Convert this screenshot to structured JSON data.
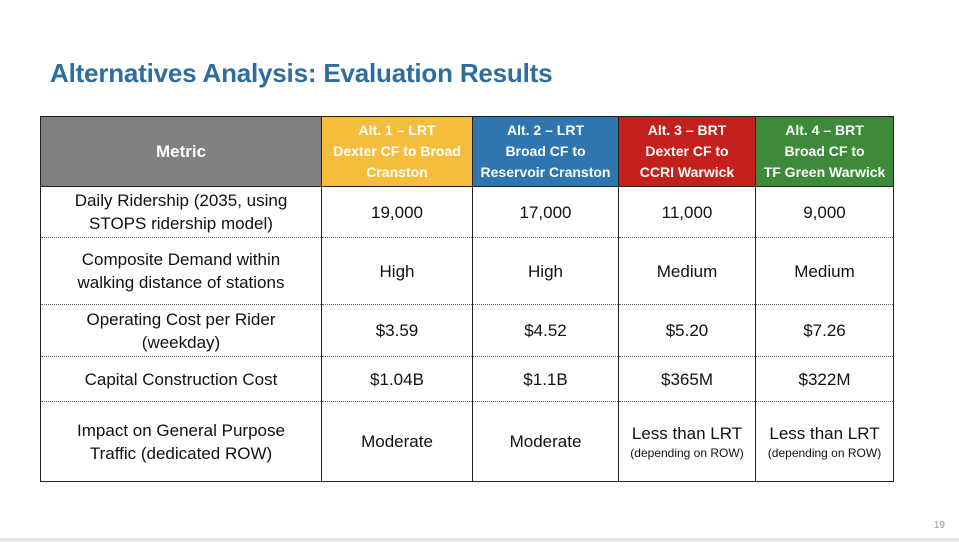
{
  "slide": {
    "title": "Alternatives Analysis: Evaluation Results",
    "page_number": "19"
  },
  "colors": {
    "title": "#2e6e9e",
    "metric_header": "#808080",
    "alt1": "#f5bd3c",
    "alt2": "#2e76ad",
    "alt3": "#c4211e",
    "alt4": "#3d8a3b"
  },
  "table": {
    "headers": [
      {
        "lines": [
          "Metric"
        ]
      },
      {
        "lines": [
          "Alt. 1 – LRT",
          "Dexter CF to Broad",
          "Cranston"
        ]
      },
      {
        "lines": [
          "Alt. 2 – LRT",
          "Broad CF to",
          "Reservoir Cranston"
        ]
      },
      {
        "lines": [
          "Alt. 3 – BRT",
          "Dexter CF to",
          "CCRI Warwick"
        ]
      },
      {
        "lines": [
          "Alt. 4 – BRT",
          "Broad CF to",
          "TF Green Warwick"
        ]
      }
    ],
    "rows": [
      {
        "metric": [
          "Daily Ridership (2035, using",
          "STOPS ridership model)"
        ],
        "values": [
          "19,000",
          "17,000",
          "11,000",
          "9,000"
        ]
      },
      {
        "metric": [
          "Composite Demand within",
          "walking distance of stations"
        ],
        "values": [
          "High",
          "High",
          "Medium",
          "Medium"
        ]
      },
      {
        "metric": [
          "Operating Cost per Rider",
          "(weekday)"
        ],
        "values": [
          "$3.59",
          "$4.52",
          "$5.20",
          "$7.26"
        ]
      },
      {
        "metric": [
          "Capital Construction Cost"
        ],
        "values": [
          "$1.04B",
          "$1.1B",
          "$365M",
          "$322M"
        ]
      },
      {
        "metric": [
          "Impact on General Purpose",
          "Traffic (dedicated ROW)"
        ],
        "values": [
          "Moderate",
          "Moderate",
          "Less than LRT",
          "Less than LRT"
        ],
        "subs": [
          "",
          "",
          "(depending on ROW)",
          "(depending on ROW)"
        ]
      }
    ]
  }
}
